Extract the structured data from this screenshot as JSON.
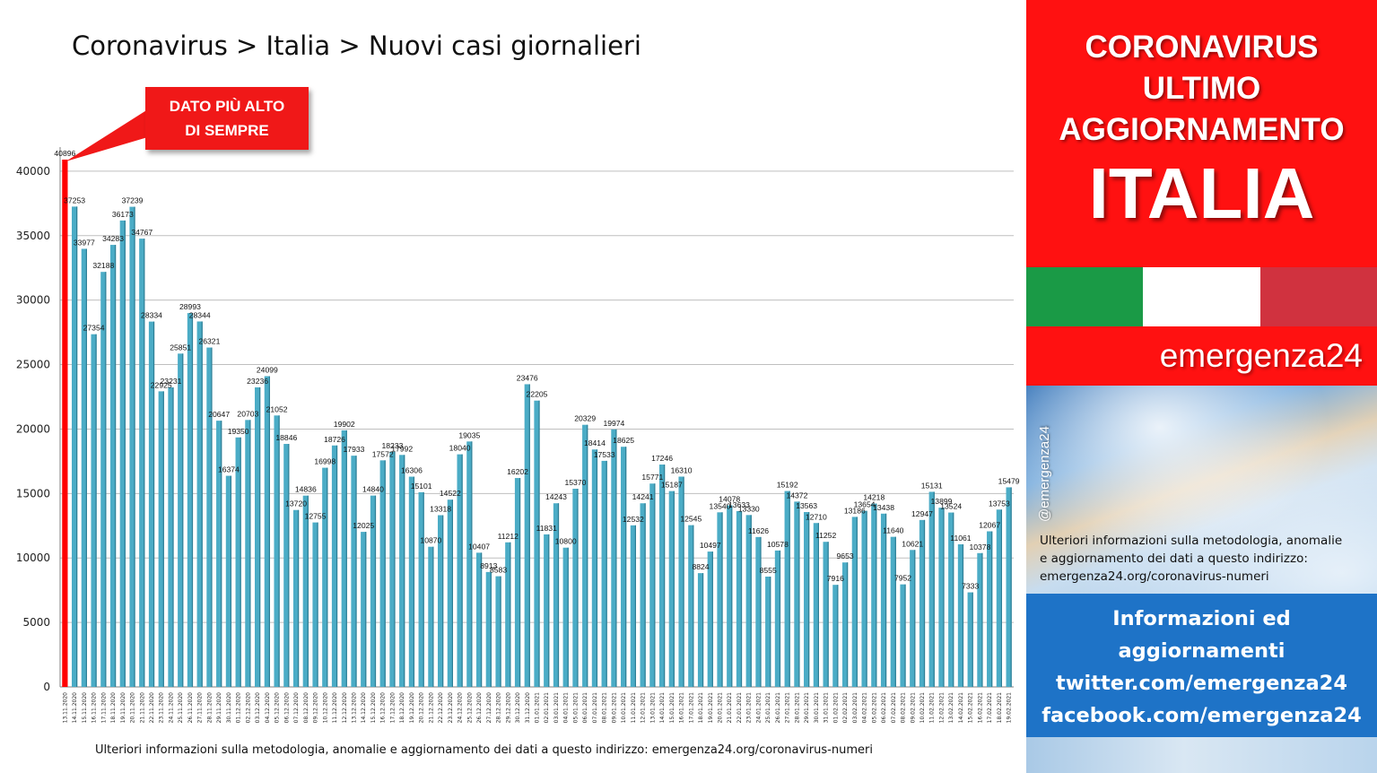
{
  "chart_data": {
    "type": "bar",
    "title": "Coronavirus > Italia > Nuovi casi giornalieri",
    "xlabel": "",
    "ylabel": "",
    "ylim": [
      0,
      40896
    ],
    "yticks": [
      0,
      5000,
      10000,
      15000,
      20000,
      25000,
      30000,
      35000,
      40000
    ],
    "grid": true,
    "legend": "none",
    "bar_color": "#4bacc6",
    "highlight_color": "#ff0000",
    "highlight_index": 0,
    "categories": [
      "13.11.2020",
      "14.11.2020",
      "15.11.2020",
      "16.11.2020",
      "17.11.2020",
      "18.11.2020",
      "19.11.2020",
      "20.11.2020",
      "21.11.2020",
      "22.11.2020",
      "23.11.2020",
      "24.11.2020",
      "25.11.2020",
      "26.11.2020",
      "27.11.2020",
      "28.11.2020",
      "29.11.2020",
      "30.11.2020",
      "01.12.2020",
      "02.12.2020",
      "03.12.2020",
      "04.12.2020",
      "05.12.2020",
      "06.12.2020",
      "07.12.2020",
      "08.12.2020",
      "09.12.2020",
      "10.12.2020",
      "11.12.2020",
      "12.12.2020",
      "13.12.2020",
      "14.12.2020",
      "15.12.2020",
      "16.12.2020",
      "17.12.2020",
      "18.12.2020",
      "19.12.2020",
      "20.12.2020",
      "21.12.2020",
      "22.12.2020",
      "23.12.2020",
      "24.12.2020",
      "25.12.2020",
      "26.12.2020",
      "27.12.2020",
      "28.12.2020",
      "29.12.2020",
      "30.12.2020",
      "31.12.2020",
      "01.01.2021",
      "02.01.2021",
      "03.01.2021",
      "04.01.2021",
      "05.01.2021",
      "06.01.2021",
      "07.01.2021",
      "08.01.2021",
      "09.01.2021",
      "10.01.2021",
      "11.01.2021",
      "12.01.2021",
      "13.01.2021",
      "14.01.2021",
      "15.01.2021",
      "16.01.2021",
      "17.01.2021",
      "18.01.2021",
      "19.01.2021",
      "20.01.2021",
      "21.01.2021",
      "22.01.2021",
      "23.01.2021",
      "24.01.2021",
      "25.01.2021",
      "26.01.2021",
      "27.01.2021",
      "28.01.2021",
      "29.01.2021",
      "30.01.2021",
      "31.01.2021",
      "01.02.2021",
      "02.02.2021",
      "03.02.2021",
      "04.02.2021",
      "05.02.2021",
      "06.02.2021",
      "07.02.2021",
      "08.02.2021",
      "09.02.2021",
      "10.02.2021",
      "11.02.2021",
      "12.02.2021",
      "13.02.2021",
      "14.02.2021",
      "15.02.2021",
      "16.02.2021",
      "17.02.2021",
      "18.02.2021",
      "19.02.2021"
    ],
    "values": [
      40896,
      37253,
      33977,
      27354,
      32188,
      34283,
      36173,
      37239,
      34767,
      28334,
      22925,
      23231,
      25851,
      28993,
      28344,
      26321,
      20647,
      16374,
      19350,
      20703,
      23236,
      24099,
      21052,
      18846,
      13720,
      14836,
      12755,
      16998,
      18726,
      19902,
      17933,
      12025,
      14840,
      17572,
      18233,
      17992,
      16306,
      15101,
      10870,
      13318,
      14522,
      18040,
      19035,
      10407,
      8913,
      8583,
      11212,
      16202,
      23476,
      22205,
      11831,
      14243,
      10800,
      15370,
      20329,
      18414,
      17533,
      19974,
      18625,
      12532,
      14241,
      15771,
      17246,
      15187,
      16310,
      12545,
      8824,
      10497,
      13540,
      14078,
      13633,
      13330,
      11626,
      8555,
      10578,
      15192,
      14372,
      13563,
      12710,
      11252,
      7916,
      9653,
      13186,
      13654,
      14218,
      13438,
      11640,
      7952,
      10621,
      12947,
      15131,
      13899,
      13524,
      11061,
      7333,
      10378,
      12067,
      13753,
      15479
    ],
    "annotations": [
      {
        "text_lines": [
          "DATO PIÙ ALTO",
          "DI SEMPRE"
        ],
        "points_to": "13.11.2020"
      }
    ]
  },
  "footnote": "Ulteriori informazioni sulla metodologia, anomalie e aggiornamento dei dati a questo indirizzo: emergenza24.org/coronavirus-numeri",
  "panel": {
    "header_lines": [
      "CORONAVIRUS",
      "ULTIMO",
      "AGGIORNAMENTO"
    ],
    "country": "ITALIA",
    "flag_colors": [
      "#1a9a46",
      "#ffffff",
      "#d0323f"
    ],
    "brand": "emergenza24",
    "handle": "@emergenza24",
    "info_lines": [
      "Ulteriori informazioni sulla metodologia, anomalie",
      "e aggiornamento dei dati a questo indirizzo:",
      "emergenza24.org/coronavirus-numeri"
    ],
    "social_lines": [
      "Informazioni ed",
      "aggiornamenti",
      "twitter.com/emergenza24",
      "facebook.com/emergenza24"
    ]
  },
  "colors": {
    "header_red": "#ff1111",
    "social_blue": "#1e73c7",
    "gridline": "#bfbfbf"
  }
}
